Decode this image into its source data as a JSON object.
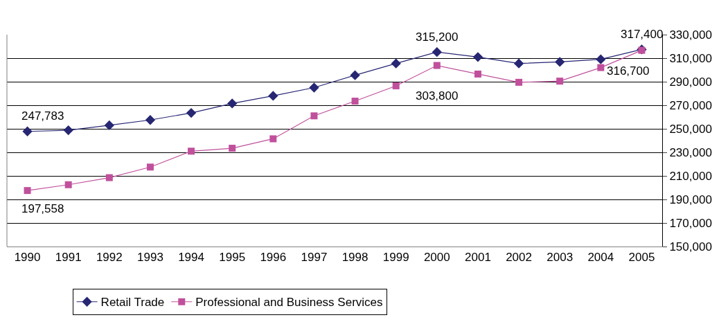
{
  "chart_data": {
    "type": "line",
    "categories": [
      "1990",
      "1991",
      "1992",
      "1993",
      "1994",
      "1995",
      "1996",
      "1997",
      "1998",
      "1999",
      "2000",
      "2001",
      "2002",
      "2003",
      "2004",
      "2005"
    ],
    "series": [
      {
        "name": "Retail Trade",
        "color": "#262673",
        "marker": "diamond",
        "values": [
          247783,
          248800,
          253000,
          257500,
          263500,
          271500,
          278000,
          285000,
          295500,
          305500,
          315200,
          311000,
          305500,
          306800,
          309000,
          317400
        ],
        "value_labels": [
          "247,783",
          null,
          null,
          null,
          null,
          null,
          null,
          null,
          null,
          null,
          "315,200",
          null,
          null,
          null,
          null,
          "317,400"
        ]
      },
      {
        "name": "Professional and Business Services",
        "color": "#c0509c",
        "marker": "square",
        "values": [
          197558,
          202500,
          208500,
          217500,
          231000,
          233500,
          241500,
          261000,
          273500,
          286500,
          303800,
          296500,
          289500,
          290500,
          302000,
          316700
        ],
        "value_labels": [
          "197,558",
          null,
          null,
          null,
          null,
          null,
          null,
          null,
          null,
          null,
          "303,800",
          null,
          null,
          null,
          null,
          "316,700"
        ]
      }
    ],
    "ylim": [
      150000,
      330000
    ],
    "yticks": [
      {
        "value": 150000,
        "label": "150,000"
      },
      {
        "value": 170000,
        "label": "170,000"
      },
      {
        "value": 190000,
        "label": "190,000"
      },
      {
        "value": 210000,
        "label": "210,000"
      },
      {
        "value": 230000,
        "label": "230,000"
      },
      {
        "value": 250000,
        "label": "250,000"
      },
      {
        "value": 270000,
        "label": "270,000"
      },
      {
        "value": 290000,
        "label": "290,000"
      },
      {
        "value": 310000,
        "label": "310,000"
      },
      {
        "value": 330000,
        "label": "330,000"
      }
    ],
    "grid": "y",
    "legend": "bottom",
    "line_style": "solid"
  }
}
